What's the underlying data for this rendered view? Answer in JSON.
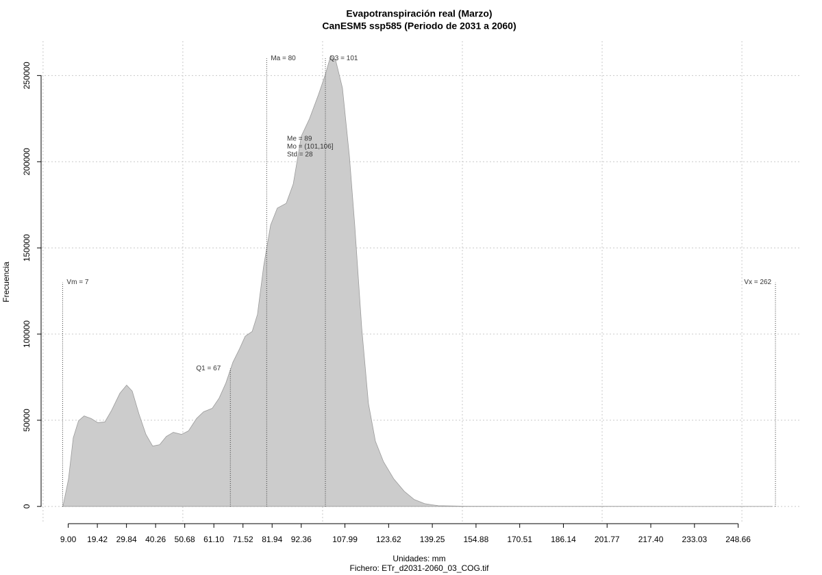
{
  "chart_data": {
    "type": "area",
    "title": "Evapotranspiración real (Marzo)",
    "subtitle": "CanESM5 ssp585 (Periodo de 2031 a 2060)",
    "x_label": "Unidades: mm",
    "y_label": "Frecuencia",
    "caption": "Fichero: ETr_d2031-2060_03_COG.tif",
    "color": "#cccccc",
    "grid": true,
    "x": [
      7.1,
      9.1,
      10.8,
      12.7,
      14.7,
      17.2,
      19.6,
      22.1,
      24.5,
      27.5,
      29.9,
      31.9,
      34.3,
      36.8,
      39.2,
      41.7,
      44.1,
      46.6,
      49.5,
      52.0,
      54.9,
      57.4,
      60.5,
      63.0,
      65.4,
      67.9,
      70.3,
      72.3,
      74.8,
      76.7,
      78.9,
      81.4,
      83.8,
      87.0,
      89.5,
      92.4,
      95.3,
      98.5,
      101.0,
      102.9,
      104.7,
      107.1,
      109.6,
      111.5,
      114.0,
      116.4,
      118.9,
      121.8,
      125.5,
      129.2,
      132.8,
      136.5,
      141.4,
      151.2,
      261
    ],
    "values": [
      0,
      15900,
      39800,
      49750,
      52500,
      51000,
      48600,
      49000,
      55700,
      65700,
      70400,
      66900,
      53700,
      41800,
      35000,
      35800,
      40600,
      43000,
      41800,
      43800,
      51000,
      54900,
      56900,
      62900,
      71600,
      83600,
      91500,
      98700,
      101500,
      111400,
      139300,
      163200,
      173100,
      175900,
      187100,
      214900,
      224900,
      238800,
      250700,
      261500,
      258700,
      242800,
      203000,
      163200,
      103500,
      59700,
      37800,
      25900,
      15900,
      8800,
      4000,
      1600,
      400,
      100,
      0
    ],
    "xlim": [
      -0.7,
      271.3
    ],
    "ylim": [
      -10000,
      270000
    ],
    "yticks": [
      0,
      50000,
      100000,
      150000,
      200000,
      250000
    ],
    "xgrid": [
      0,
      50,
      100,
      150,
      200,
      250
    ],
    "xticks": [
      {
        "value": 9,
        "label": "9.00"
      },
      19.42,
      29.84,
      40.26,
      50.68,
      {
        "value": 61.1,
        "label": "61.10"
      },
      71.52,
      81.94,
      92.36,
      107.99,
      123.62,
      139.25,
      154.88,
      170.51,
      186.14,
      201.77,
      {
        "value": 217.4,
        "label": "217.40"
      },
      233.03,
      248.66
    ],
    "markers": [
      {
        "label": "Vm = 7",
        "x": 7,
        "top": 130000
      },
      {
        "label": "Q1 = 67",
        "x": 67,
        "top": 80000
      },
      {
        "label": "Ma = 80",
        "x": 80,
        "top": 260000
      },
      {
        "label": "Q3 = 101",
        "x": 101,
        "top": 260000
      },
      {
        "label": "Vx = 262",
        "x": 262,
        "top": 130000
      }
    ],
    "stats": [
      "Me = 89",
      "Mo = (101,106]",
      "Std = 28"
    ]
  }
}
